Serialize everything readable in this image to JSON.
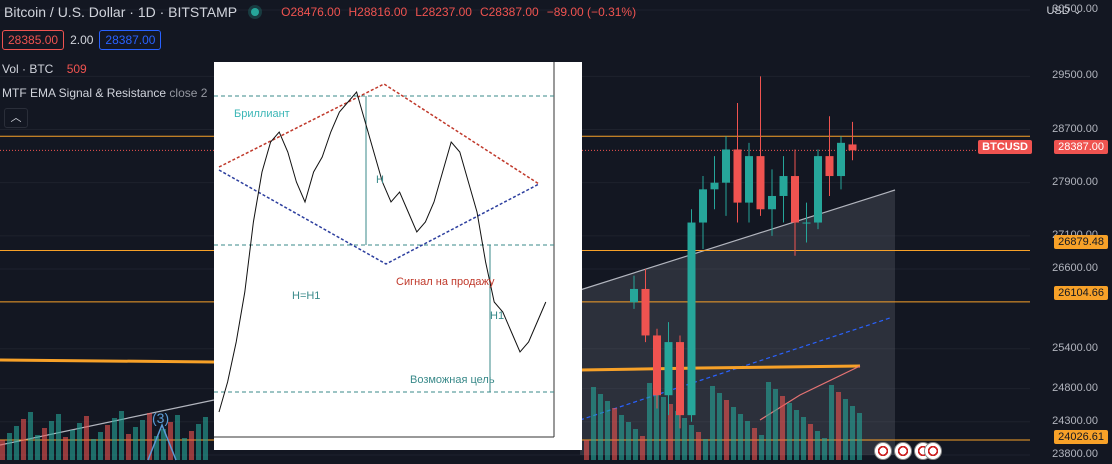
{
  "header": {
    "title": "Bitcoin / U.S. Dollar · 1D · BITSTAMP",
    "ohlc": {
      "o": "O28476.00",
      "h": "H28816.00",
      "l": "L28237.00",
      "c": "C28387.00",
      "change": "−89.00 (−0.31%)"
    }
  },
  "trade": {
    "sell": "28385.00",
    "spread": "2.00",
    "buy": "28387.00"
  },
  "indicators": {
    "vol_label": "Vol · BTC",
    "vol_value": "509",
    "mtf_label": "MTF EMA Signal & Resistance",
    "mtf_extra": "close 2"
  },
  "price_axis": {
    "currency": "USD",
    "ticks": [
      "30500.00",
      "29500.00",
      "28700.00",
      "27900.00",
      "27100.00",
      "26600.00",
      "25400.00",
      "24800.00",
      "24300.00",
      "23800.00"
    ],
    "tags": {
      "symbol": "BTCUSD",
      "last": "28387.00",
      "level1": "26879.48",
      "level2": "26104.66",
      "level3": "24026.61"
    }
  },
  "wave_label": "(3)",
  "inset": {
    "labels": {
      "diamond": "Бриллиант",
      "h": "H",
      "hh1": "H=H1",
      "sell_signal": "Сигнал на продажу",
      "h1": "H1",
      "target": "Возможная цель"
    }
  },
  "chart_data": {
    "type": "candlestick",
    "title": "Bitcoin / U.S. Dollar · 1D · BITSTAMP",
    "ylim": [
      23800,
      30500
    ],
    "horizontal_levels": [
      26879.48,
      26104.66,
      24026.61,
      28387.0
    ],
    "candles": [
      {
        "o": 26100,
        "h": 26500,
        "l": 26000,
        "c": 26300,
        "dir": "up"
      },
      {
        "o": 26300,
        "h": 26600,
        "l": 25500,
        "c": 25600,
        "dir": "down"
      },
      {
        "o": 25600,
        "h": 25700,
        "l": 24500,
        "c": 24700,
        "dir": "down"
      },
      {
        "o": 24700,
        "h": 25800,
        "l": 24400,
        "c": 25500,
        "dir": "up"
      },
      {
        "o": 25500,
        "h": 25600,
        "l": 24200,
        "c": 24400,
        "dir": "down"
      },
      {
        "o": 24400,
        "h": 27500,
        "l": 24300,
        "c": 27300,
        "dir": "up"
      },
      {
        "o": 27300,
        "h": 28000,
        "l": 26900,
        "c": 27800,
        "dir": "up"
      },
      {
        "o": 27800,
        "h": 28300,
        "l": 27500,
        "c": 27900,
        "dir": "up"
      },
      {
        "o": 27900,
        "h": 28600,
        "l": 27400,
        "c": 28400,
        "dir": "up"
      },
      {
        "o": 28400,
        "h": 29100,
        "l": 27300,
        "c": 27600,
        "dir": "down"
      },
      {
        "o": 27600,
        "h": 28500,
        "l": 27300,
        "c": 28300,
        "dir": "up"
      },
      {
        "o": 28300,
        "h": 29500,
        "l": 27400,
        "c": 27500,
        "dir": "down"
      },
      {
        "o": 27500,
        "h": 28100,
        "l": 27100,
        "c": 27700,
        "dir": "up"
      },
      {
        "o": 27700,
        "h": 28300,
        "l": 27300,
        "c": 28000,
        "dir": "up"
      },
      {
        "o": 28000,
        "h": 28400,
        "l": 26800,
        "c": 27300,
        "dir": "down"
      },
      {
        "o": 27300,
        "h": 27600,
        "l": 27000,
        "c": 27300,
        "dir": "up"
      },
      {
        "o": 27300,
        "h": 28400,
        "l": 27200,
        "c": 28300,
        "dir": "up"
      },
      {
        "o": 28300,
        "h": 28900,
        "l": 27700,
        "c": 28000,
        "dir": "down"
      },
      {
        "o": 28000,
        "h": 28600,
        "l": 27800,
        "c": 28500,
        "dir": "up"
      },
      {
        "o": 28476,
        "h": 28816,
        "l": 28237,
        "c": 28387,
        "dir": "down"
      }
    ]
  }
}
